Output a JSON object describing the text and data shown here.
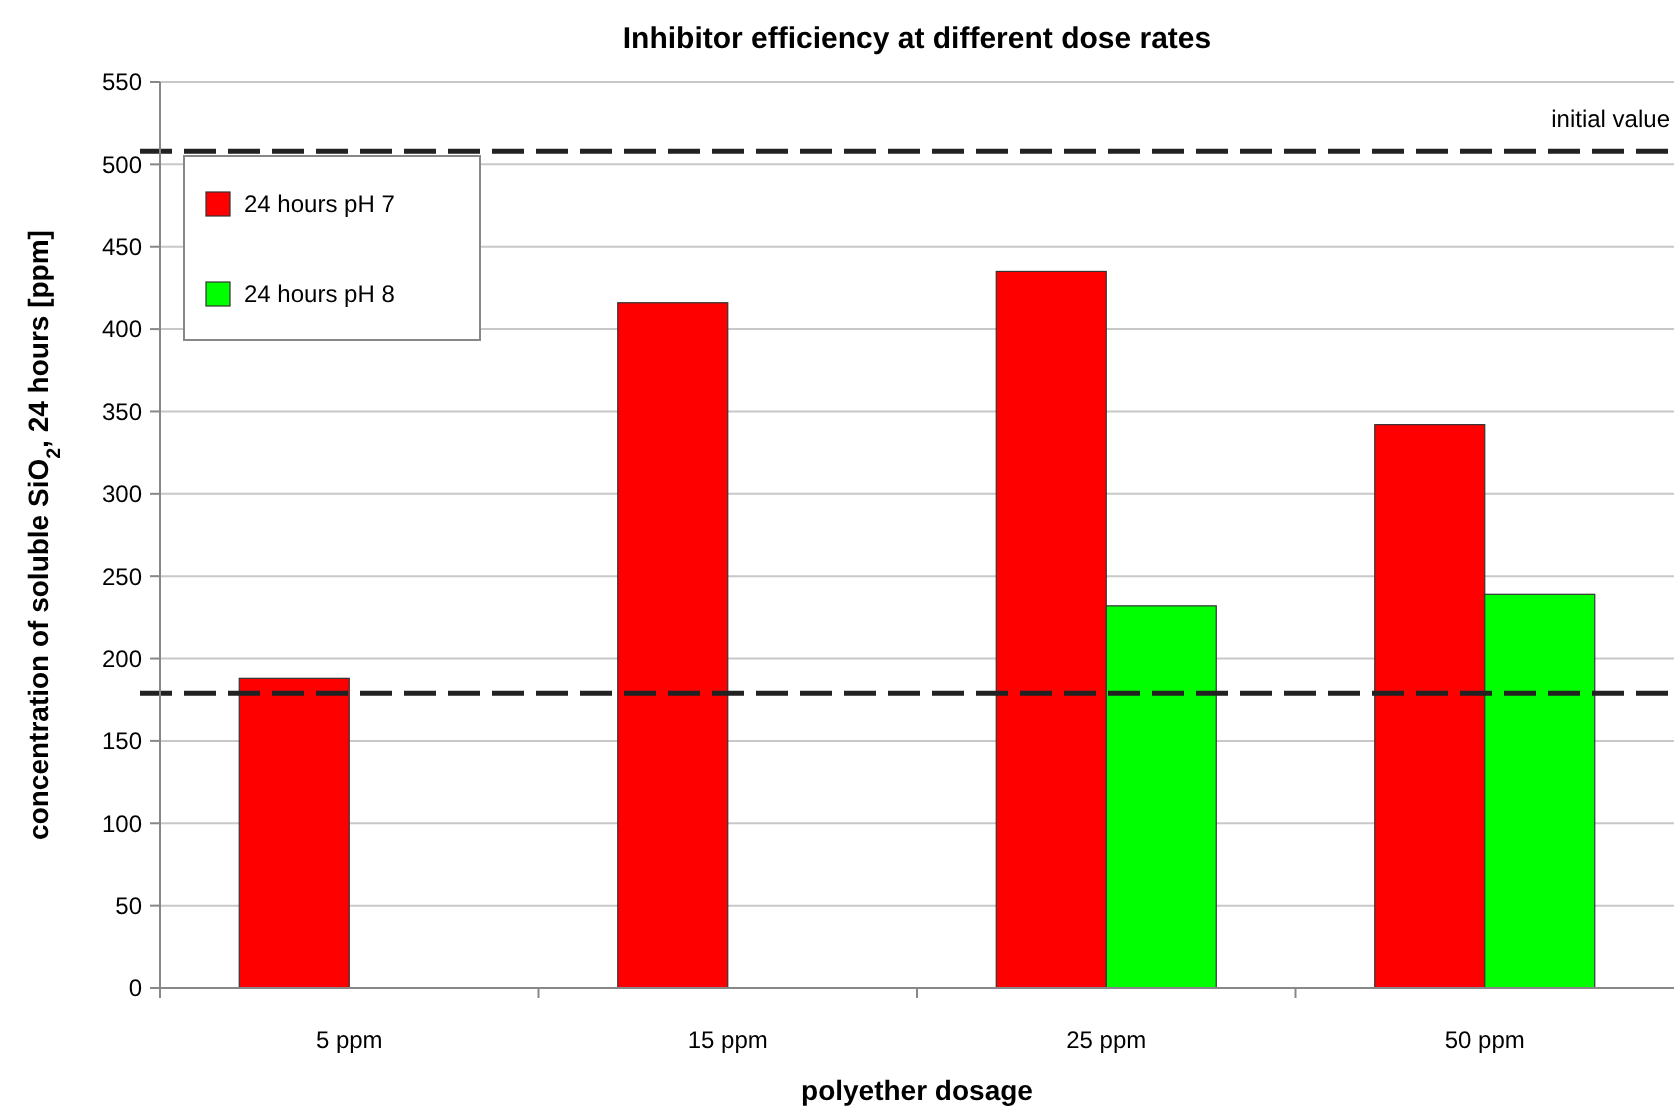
{
  "chart_data": {
    "type": "bar",
    "title": "Inhibitor efficiency at different dose rates",
    "xlabel": "polyether dosage",
    "ylabel": "concentration of soluble SiO$_{2}$, 24 hours [ppm]",
    "categories": [
      "5 ppm",
      "15 ppm",
      "25 ppm",
      "50 ppm"
    ],
    "series": [
      {
        "name": "24 hours pH 7",
        "color": "#ff0000",
        "values": [
          188,
          416,
          435,
          342
        ]
      },
      {
        "name": "24 hours pH 8",
        "color": "#00ff00",
        "values": [
          null,
          null,
          232,
          239
        ]
      }
    ],
    "ylim": [
      0,
      550
    ],
    "yticks": [
      0,
      50,
      100,
      150,
      200,
      250,
      300,
      350,
      400,
      450,
      500,
      550
    ],
    "grid": "y",
    "legend": "top left",
    "ref_lines": [
      {
        "axis": "y",
        "value": 508,
        "label": "initial value",
        "line_style": "dashed"
      },
      {
        "axis": "y",
        "value": 179,
        "line_style": "dashed"
      }
    ]
  }
}
